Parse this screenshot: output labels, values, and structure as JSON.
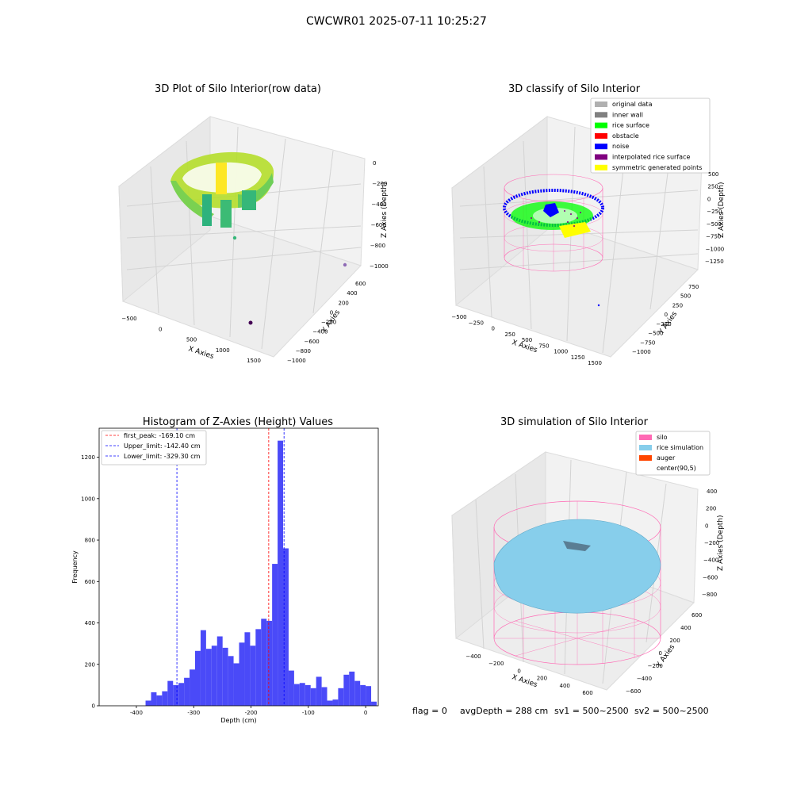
{
  "figure_title": "CWCWR01 2025-07-11 10:25:27",
  "footer": {
    "flag": "flag = 0",
    "avg_depth": "avgDepth = 288 cm",
    "sv1": "sv1 = 500~2500",
    "sv2": "sv2 = 500~2500"
  },
  "colors": {
    "histogram_bar": "#4a4af8",
    "peak_line": "#ff0000",
    "limit_line": "#0000ff",
    "pane": "#f2f2f2",
    "grid": "#d3d3d3",
    "silo": "#ff69b4",
    "rice": "#87ceeb",
    "auger": "#ff4500",
    "rice_surface": "#00ff00",
    "noise": "#0000ff",
    "symmetric": "#ffff00",
    "inner_wall": "#808080",
    "original": "#b0b0b0",
    "obstacle": "#ff0000",
    "interpolated": "#800080"
  },
  "chart_data": [
    {
      "type": "scatter",
      "title": "3D Plot of Silo Interior(row data)",
      "xlabel": "X Axies",
      "ylabel": "Y Axies",
      "zlabel": "Z Axies (Depth)",
      "x_ticks": [
        "−500",
        "0",
        "500",
        "1000",
        "1500"
      ],
      "y_ticks": [
        "600",
        "400",
        "200",
        "0",
        "−200",
        "−400",
        "−600",
        "−800",
        "−1000"
      ],
      "z_ticks": [
        "0",
        "−200",
        "−400",
        "−600",
        "−800",
        "−1000"
      ],
      "xlim": [
        -600,
        1600
      ],
      "ylim": [
        -1000,
        600
      ],
      "zlim": [
        -1000,
        0
      ],
      "grid": true,
      "colormap": "viridis"
    },
    {
      "type": "scatter",
      "title": "3D classify of Silo Interior",
      "xlabel": "X Axies",
      "ylabel": "Y Axies",
      "zlabel": "Z Axies (Depth)",
      "x_ticks": [
        "−500",
        "−250",
        "0",
        "250",
        "500",
        "750",
        "1000",
        "1250",
        "1500"
      ],
      "y_ticks": [
        "750",
        "500",
        "250",
        "0",
        "−250",
        "−500",
        "−750",
        "−1000"
      ],
      "z_ticks": [
        "500",
        "250",
        "0",
        "−250",
        "−500",
        "−750",
        "−1000",
        "−1250"
      ],
      "xlim": [
        -500,
        1500
      ],
      "ylim": [
        -1000,
        750
      ],
      "zlim": [
        -1250,
        500
      ],
      "grid": true,
      "legend_position": "top-right",
      "legend": [
        {
          "label": "original data",
          "color": "#b0b0b0"
        },
        {
          "label": "inner wall",
          "color": "#808080"
        },
        {
          "label": "rice surface",
          "color": "#00ff00"
        },
        {
          "label": "obstacle",
          "color": "#ff0000"
        },
        {
          "label": "noise",
          "color": "#0000ff"
        },
        {
          "label": "interpolated rice surface",
          "color": "#800080"
        },
        {
          "label": "symmetric generated points",
          "color": "#ffff00"
        }
      ]
    },
    {
      "type": "bar",
      "title": "Histogram of Z-Axies (Height) Values",
      "xlabel": "Depth (cm)",
      "ylabel": "Frequency",
      "xlim": [
        -465,
        22
      ],
      "ylim": [
        0,
        1340
      ],
      "x_ticks": [
        -400,
        -300,
        -200,
        -100,
        0
      ],
      "y_ticks": [
        0,
        200,
        400,
        600,
        800,
        1000,
        1200
      ],
      "bin_width": 9.6,
      "bin_start": -384,
      "values": [
        25,
        65,
        50,
        70,
        120,
        100,
        110,
        135,
        175,
        265,
        365,
        275,
        290,
        335,
        280,
        240,
        205,
        305,
        355,
        290,
        370,
        420,
        410,
        685,
        1280,
        760,
        170,
        105,
        110,
        100,
        85,
        140,
        90,
        25,
        30,
        85,
        150,
        165,
        120,
        100,
        95,
        20
      ],
      "vlines": [
        {
          "x": -169.1,
          "color": "#ff0000",
          "label": "first_peak: -169.10 cm"
        },
        {
          "x": -142.4,
          "color": "#0000ff",
          "label": "Upper_limit: -142.40 cm"
        },
        {
          "x": -329.3,
          "color": "#0000ff",
          "label": "Lower_limit: -329.30 cm"
        }
      ],
      "legend_position": "top-left"
    },
    {
      "type": "surface",
      "title": "3D simulation of Silo Interior",
      "xlabel": "X Axies",
      "ylabel": "Y Axies",
      "zlabel": "Z Axies (Depth)",
      "x_ticks": [
        "−400",
        "−200",
        "0",
        "200",
        "400",
        "600"
      ],
      "y_ticks": [
        "600",
        "400",
        "200",
        "0",
        "−200",
        "−400",
        "−600"
      ],
      "z_ticks": [
        "400",
        "200",
        "0",
        "−200",
        "−400",
        "−600",
        "−800"
      ],
      "xlim": [
        -600,
        700
      ],
      "ylim": [
        -600,
        600
      ],
      "zlim": [
        -900,
        450
      ],
      "grid": true,
      "legend_position": "top-right",
      "legend": [
        {
          "label": "silo",
          "color": "#ff69b4"
        },
        {
          "label": "rice simulation",
          "color": "#87ceeb"
        },
        {
          "label": "auger",
          "color": "#ff4500"
        },
        {
          "label": "center(90,5)",
          "color": ""
        }
      ]
    }
  ]
}
